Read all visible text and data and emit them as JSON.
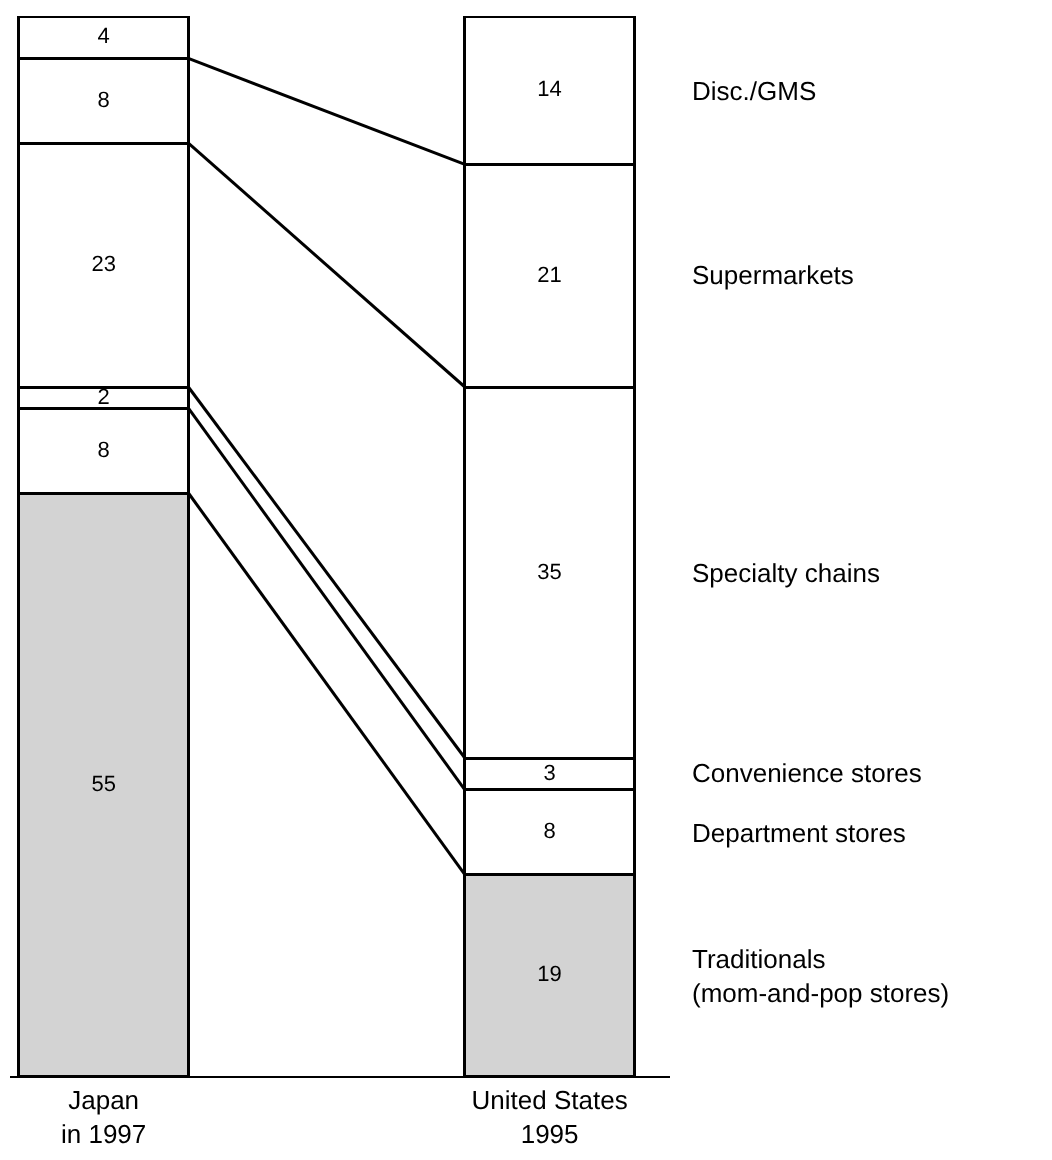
{
  "chart_data": {
    "type": "bar",
    "stacked": true,
    "data_labels": true,
    "categories": [
      "Japan\nin 1997",
      "United States\n1995"
    ],
    "series": [
      {
        "name": "Traditionals\n(mom-and-pop stores)",
        "color": "#d3d3d3",
        "values": [
          55,
          19
        ]
      },
      {
        "name": "Department stores",
        "color": "#ffffff",
        "values": [
          8,
          8
        ]
      },
      {
        "name": "Convenience stores",
        "color": "#ffffff",
        "values": [
          2,
          3
        ]
      },
      {
        "name": "Specialty chains",
        "color": "#ffffff",
        "values": [
          23,
          35
        ]
      },
      {
        "name": "Supermarkets",
        "color": "#ffffff",
        "values": [
          8,
          21
        ]
      },
      {
        "name": "Disc./GMS",
        "color": "#ffffff",
        "values": [
          4,
          14
        ]
      }
    ]
  }
}
